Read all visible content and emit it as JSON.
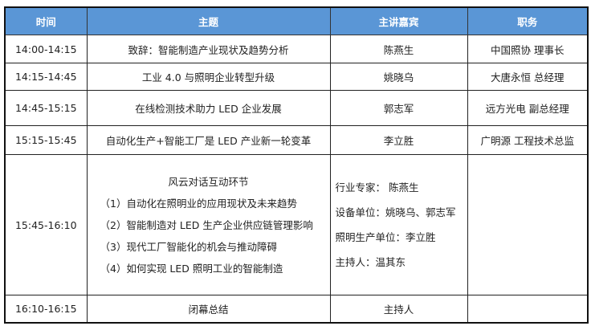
{
  "header": {
    "time": "时间",
    "topic": "主题",
    "speaker": "主讲嘉宾",
    "position": "职务"
  },
  "colors": {
    "header_bg": "#5a96d6",
    "header_text": "#ffffff",
    "border": "#222222"
  },
  "rows": [
    {
      "time": "14:00-14:15",
      "topic": "致辞：智能制造产业现状及趋势分析",
      "speaker": "陈燕生",
      "position": "中国照协  理事长"
    },
    {
      "time": "14:15-14:45",
      "topic": "工业 4.0 与照明企业转型升级",
      "speaker": "姚晓乌",
      "position": "大唐永恒  总经理"
    },
    {
      "time": "14:45-15:15",
      "topic": "在线检测技术助力 LED 企业发展",
      "speaker": "郭志军",
      "position": "远方光电  副总经理"
    },
    {
      "time": "15:15-15:45",
      "topic": "自动化生产+智能工厂是 LED 产业新一轮变革",
      "speaker": "李立胜",
      "position": "广明源  工程技术总监"
    }
  ],
  "panel": {
    "time": "15:45-16:10",
    "topics": [
      "风云对话互动环节",
      "（1）自动化在照明业的应用现状及未来趋势",
      "（2）智能制造对 LED 生产企业供应链管理影响",
      "（3）现代工厂智能化的机会与推动障碍",
      "（4）如何实现 LED 照明工业的智能制造"
    ],
    "speakers": [
      "行业专家：  陈燕生",
      "设备单位：姚晓乌、郭志军",
      "照明生产单位：李立胜",
      "主持人：温其东"
    ],
    "position": ""
  },
  "closing": {
    "time": "16:10-16:15",
    "topic": "闭幕总结",
    "speaker": "主持人",
    "position": ""
  }
}
